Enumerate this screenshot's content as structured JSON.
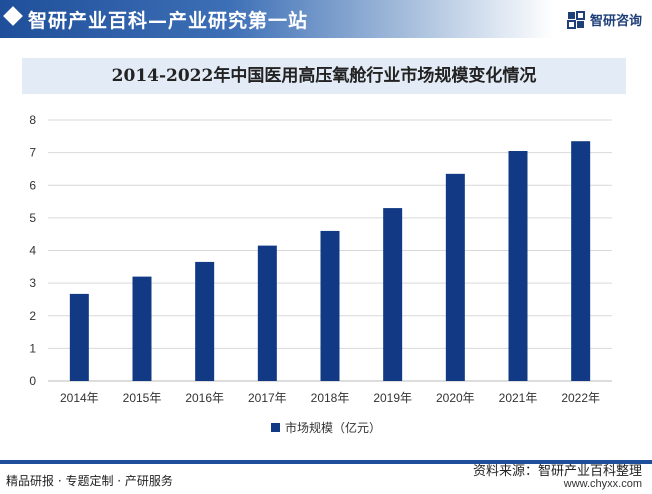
{
  "header": {
    "title": "智研产业百科—产业研究第一站",
    "brand_icon": "zhiyan-logo-icon",
    "brand_name": "智研咨询"
  },
  "chart_data": {
    "type": "bar",
    "title": "2014-2022年中国医用高压氧舱行业市场规模变化情况",
    "categories": [
      "2014年",
      "2015年",
      "2016年",
      "2017年",
      "2018年",
      "2019年",
      "2020年",
      "2021年",
      "2022年"
    ],
    "series": [
      {
        "name": "市场规模（亿元）",
        "color": "#123a84",
        "values": [
          2.67,
          3.2,
          3.65,
          4.15,
          4.6,
          5.3,
          6.35,
          7.05,
          7.35
        ]
      }
    ],
    "yticks": [
      "0",
      "1",
      "2",
      "3",
      "4",
      "5",
      "6",
      "7",
      "8"
    ],
    "ylim": [
      0,
      8
    ],
    "grid": true,
    "legend_position": "bottom"
  },
  "footer": {
    "left_text": "精品研报 · 专题定制 · 产研服务",
    "source": "资料来源：智研产业百科整理",
    "url": "www.chyxx.com"
  }
}
